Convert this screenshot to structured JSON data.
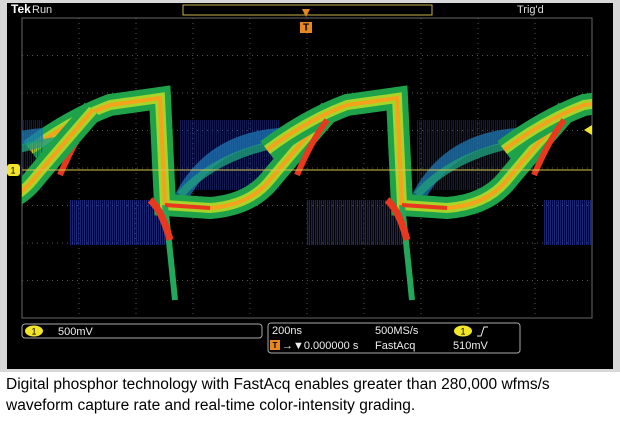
{
  "header": {
    "brand": "Tek",
    "status": "Run",
    "trigger_state": "Trig'd",
    "trigger_marker": "T"
  },
  "channel_marker": "1",
  "readouts": {
    "channel": "1",
    "channel_scale": "500mV",
    "timebase": "200ns",
    "sample_rate": "500MS/s",
    "trigger_channel": "1",
    "trigger_position_icon": "T",
    "trigger_position": "→▼0.000000 s",
    "acquisition_mode": "FastAcq",
    "trigger_level": "510mV"
  },
  "caption": {
    "lines": [
      "Digital phosphor technology with FastAcq enables greater than 280,000 wfms/s",
      "waveform capture rate and real-time color-intensity grading."
    ]
  }
}
